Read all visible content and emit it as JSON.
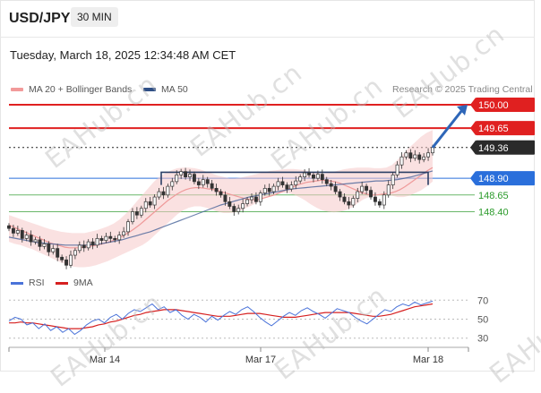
{
  "header": {
    "pair": "USD/JPY",
    "timeframe": "30 MIN",
    "timestamp": "Tuesday, March 18, 2025 12:34:48 AM CET"
  },
  "legend": {
    "items": [
      {
        "label": "MA 20 + Bollinger Bands",
        "color": "#f29a9a"
      },
      {
        "label": "MA 50",
        "color": "#2f4f86"
      }
    ],
    "research": "Research © 2025 Trading Central"
  },
  "rsi_legend": {
    "items": [
      {
        "label": "RSI",
        "color": "#4a73d9"
      },
      {
        "label": "9MA",
        "color": "#d62020"
      }
    ]
  },
  "watermark_text": "EAHub.cn",
  "chart_data": [
    {
      "type": "line",
      "title": "",
      "x_ticks": [
        "Mar 14",
        "Mar 17",
        "Mar 18"
      ],
      "ylim": [
        147.55,
        150.2
      ],
      "levels": [
        {
          "value": 150.0,
          "label": "150.00",
          "kind": "resistance",
          "color": "#e02020"
        },
        {
          "value": 149.65,
          "label": "149.65",
          "kind": "resistance",
          "color": "#e02020"
        },
        {
          "value": 149.36,
          "label": "149.36",
          "kind": "last_price",
          "color": "#222222"
        },
        {
          "value": 148.9,
          "label": "148.90",
          "kind": "pivot",
          "color": "#2a6fdb"
        },
        {
          "value": 148.65,
          "label": "148.65",
          "kind": "support",
          "color": "#2a9a2a"
        },
        {
          "value": 148.4,
          "label": "148.40",
          "kind": "support",
          "color": "#2a9a2a"
        }
      ],
      "price_close": [
        148.15,
        148.08,
        148.12,
        148.0,
        148.05,
        147.95,
        147.98,
        147.88,
        147.92,
        147.8,
        147.85,
        147.72,
        147.68,
        147.6,
        147.75,
        147.82,
        147.9,
        147.86,
        147.95,
        147.9,
        148.0,
        147.97,
        148.03,
        148.0,
        147.98,
        148.05,
        148.1,
        148.25,
        148.4,
        148.35,
        148.45,
        148.55,
        148.5,
        148.62,
        148.7,
        148.65,
        148.78,
        148.85,
        148.95,
        149.0,
        148.92,
        148.96,
        148.85,
        148.8,
        148.88,
        148.82,
        148.75,
        148.7,
        148.65,
        148.55,
        148.48,
        148.4,
        148.45,
        148.52,
        148.58,
        148.62,
        148.55,
        148.68,
        148.75,
        148.7,
        148.78,
        148.85,
        148.8,
        148.74,
        148.8,
        148.86,
        148.92,
        148.98,
        148.95,
        148.9,
        148.96,
        148.88,
        148.82,
        148.78,
        148.7,
        148.62,
        148.55,
        148.5,
        148.6,
        148.7,
        148.78,
        148.72,
        148.62,
        148.55,
        148.5,
        148.65,
        148.8,
        148.95,
        149.1,
        149.22,
        149.28,
        149.2,
        149.25,
        149.18,
        149.22,
        149.28,
        149.36
      ],
      "ma20": [
        148.2,
        148.17,
        148.14,
        148.11,
        148.08,
        148.05,
        148.02,
        147.99,
        147.96,
        147.93,
        147.91,
        147.89,
        147.87,
        147.86,
        147.86,
        147.86,
        147.87,
        147.88,
        147.89,
        147.9,
        147.92,
        147.94,
        147.96,
        147.99,
        148.02,
        148.06,
        148.1,
        148.15,
        148.2,
        148.26,
        148.32,
        148.38,
        148.44,
        148.5,
        148.56,
        148.61,
        148.66,
        148.7,
        148.73,
        148.75,
        148.76,
        148.76,
        148.75,
        148.74,
        148.73,
        148.71,
        148.69,
        148.67,
        148.65,
        148.63,
        148.61,
        148.59,
        148.58,
        148.58,
        148.59,
        148.61,
        148.63,
        148.65,
        148.68,
        148.71,
        148.74,
        148.77,
        148.8,
        148.82,
        148.84,
        148.85,
        148.86,
        148.87,
        148.87,
        148.86,
        148.85,
        148.83,
        148.8,
        148.77,
        148.74,
        148.71,
        148.68,
        148.66,
        148.65,
        148.65,
        148.66,
        148.67,
        148.68,
        148.7,
        148.73,
        148.77,
        148.82,
        148.87,
        148.92,
        148.97,
        149.02,
        149.06
      ],
      "bollinger_upper": [
        148.35,
        148.32,
        148.29,
        148.26,
        148.23,
        148.2,
        148.17,
        148.14,
        148.12,
        148.1,
        148.09,
        148.08,
        148.08,
        148.08,
        148.1,
        148.12,
        148.15,
        148.18,
        148.22,
        148.28,
        148.36,
        148.45,
        148.55,
        148.65,
        148.75,
        148.85,
        148.93,
        148.98,
        149.02,
        149.05,
        149.06,
        149.06,
        149.05,
        149.03,
        149.0,
        148.97,
        148.94,
        148.92,
        148.9,
        148.9,
        148.91,
        148.93,
        148.95,
        148.97,
        148.99,
        149.01,
        149.02,
        149.03,
        149.04,
        149.04,
        149.03,
        149.02,
        149.0,
        148.98,
        148.97,
        148.98,
        149.0,
        149.02,
        149.04,
        149.05,
        149.06,
        149.06,
        149.06,
        149.05,
        149.05,
        149.06,
        149.1,
        149.18,
        149.27,
        149.36,
        149.44,
        149.52,
        149.58,
        149.62
      ],
      "bollinger_lower": [
        147.95,
        147.92,
        147.9,
        147.87,
        147.84,
        147.8,
        147.76,
        147.72,
        147.68,
        147.64,
        147.61,
        147.58,
        147.57,
        147.57,
        147.58,
        147.6,
        147.63,
        147.66,
        147.7,
        147.74,
        147.78,
        147.82,
        147.86,
        147.9,
        147.96,
        148.04,
        148.12,
        148.2,
        148.28,
        148.36,
        148.42,
        148.46,
        148.48,
        148.48,
        148.46,
        148.43,
        148.4,
        148.38,
        148.38,
        148.39,
        148.42,
        148.46,
        148.5,
        148.55,
        148.6,
        148.64,
        148.67,
        148.68,
        148.68,
        148.66,
        148.62,
        148.57,
        148.51,
        148.46,
        148.42,
        148.4,
        148.39,
        148.4,
        148.42,
        148.46,
        148.52,
        148.58,
        148.62,
        148.64,
        148.65,
        148.65,
        148.64,
        148.62,
        148.62,
        148.64,
        148.68,
        148.72,
        148.78,
        148.85
      ],
      "ma50": [
        148.02,
        148.0,
        147.98,
        147.96,
        147.94,
        147.93,
        147.92,
        147.91,
        147.9,
        147.9,
        147.9,
        147.9,
        147.91,
        147.92,
        147.94,
        147.96,
        147.98,
        148.01,
        148.04,
        148.07,
        148.1,
        148.14,
        148.18,
        148.22,
        148.26,
        148.3,
        148.34,
        148.38,
        148.42,
        148.46,
        148.5,
        148.53,
        148.56,
        148.59,
        148.62,
        148.64,
        148.66,
        148.68,
        148.7,
        148.72,
        148.74,
        148.75,
        148.76,
        148.77,
        148.78,
        148.79,
        148.8,
        148.81,
        148.82,
        148.83,
        148.84,
        148.85,
        148.86,
        148.86,
        148.87,
        148.88,
        148.9,
        148.92,
        148.95,
        148.98,
        149.01
      ],
      "channel": {
        "upper": 148.99,
        "lower": 148.8
      },
      "forecast_target": 150.0
    },
    {
      "type": "line",
      "title": "",
      "ylim": [
        25,
        75
      ],
      "y_ticks": [
        70,
        50,
        30
      ],
      "series": [
        {
          "name": "RSI",
          "values": [
            48,
            52,
            50,
            44,
            46,
            40,
            45,
            38,
            42,
            36,
            40,
            34,
            38,
            44,
            48,
            50,
            46,
            52,
            55,
            50,
            56,
            60,
            58,
            62,
            66,
            60,
            63,
            57,
            60,
            54,
            50,
            55,
            52,
            47,
            53,
            49,
            54,
            58,
            55,
            60,
            63,
            58,
            52,
            47,
            43,
            48,
            53,
            57,
            54,
            59,
            62,
            58,
            55,
            51,
            56,
            61,
            59,
            57,
            52,
            48,
            45,
            50,
            55,
            60,
            58,
            63,
            66,
            64,
            68,
            65,
            67,
            69
          ]
        },
        {
          "name": "9MA",
          "values": [
            46,
            46,
            47,
            46,
            46,
            45,
            44,
            43,
            42,
            41,
            40,
            40,
            40,
            41,
            42,
            44,
            45,
            47,
            48,
            50,
            52,
            54,
            55,
            57,
            58,
            59,
            60,
            60,
            60,
            59,
            58,
            57,
            56,
            55,
            54,
            53,
            53,
            53,
            54,
            55,
            56,
            56,
            56,
            55,
            54,
            53,
            52,
            52,
            52,
            53,
            54,
            55,
            56,
            57,
            57,
            57,
            57,
            57,
            56,
            55,
            54,
            53,
            53,
            54,
            55,
            57,
            59,
            61,
            63,
            64,
            65,
            66
          ]
        }
      ]
    }
  ]
}
